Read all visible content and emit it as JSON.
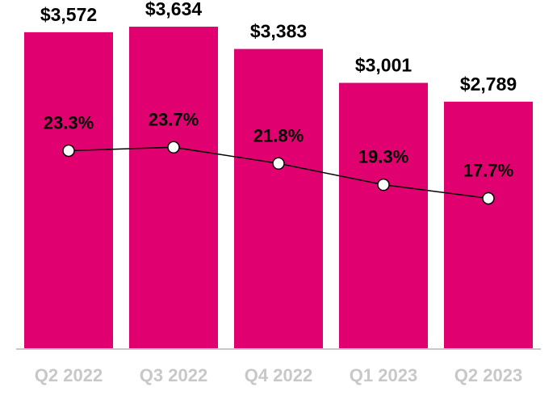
{
  "chart_data": {
    "type": "bar",
    "title": "",
    "xlabel": "",
    "ylabel": "",
    "categories": [
      "Q2 2022",
      "Q3 2022",
      "Q4 2022",
      "Q1 2023",
      "Q2 2023"
    ],
    "series": [
      {
        "name": "Value",
        "type": "bar",
        "values": [
          3572,
          3634,
          3383,
          3001,
          2789
        ],
        "labels": [
          "$3,572",
          "$3,634",
          "$3,383",
          "$3,001",
          "$2,789"
        ],
        "color": "#e0006f"
      },
      {
        "name": "Percentage",
        "type": "line",
        "values": [
          23.3,
          23.7,
          21.8,
          19.3,
          17.7
        ],
        "labels": [
          "23.3%",
          "23.7%",
          "21.8%",
          "19.3%",
          "17.7%"
        ],
        "color": "#000000"
      }
    ],
    "ylim": [
      0,
      3935
    ],
    "y2lim": [
      0,
      41
    ],
    "grid": false,
    "axis_color": "#c8c8c8"
  }
}
